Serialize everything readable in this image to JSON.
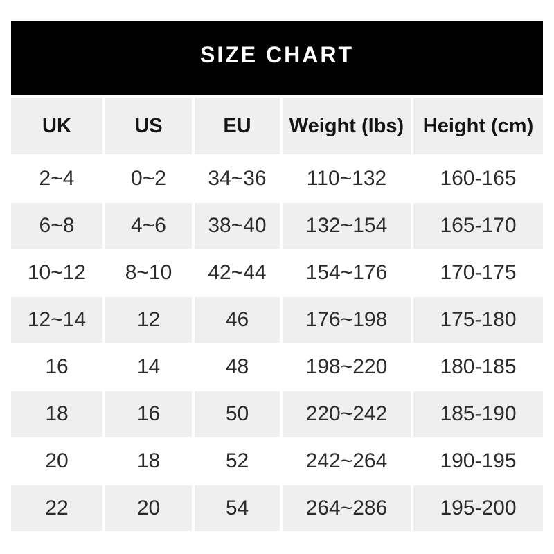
{
  "title": "SIZE CHART",
  "colors": {
    "band_background": "#000000",
    "band_text": "#ffffff",
    "stripe_row": "#efefef",
    "data_text": "#2b2b2b"
  },
  "table": {
    "columns": [
      "UK",
      "US",
      "EU",
      "Weight (lbs)",
      "Height (cm)"
    ],
    "rows": [
      [
        "2~4",
        "0~2",
        "34~36",
        "110~132",
        "160-165"
      ],
      [
        "6~8",
        "4~6",
        "38~40",
        "132~154",
        "165-170"
      ],
      [
        "10~12",
        "8~10",
        "42~44",
        "154~176",
        "170-175"
      ],
      [
        "12~14",
        "12",
        "46",
        "176~198",
        "175-180"
      ],
      [
        "16",
        "14",
        "48",
        "198~220",
        "180-185"
      ],
      [
        "18",
        "16",
        "50",
        "220~242",
        "185-190"
      ],
      [
        "20",
        "18",
        "52",
        "242~264",
        "190-195"
      ],
      [
        "22",
        "20",
        "54",
        "264~286",
        "195-200"
      ]
    ]
  },
  "chart_data": {
    "type": "table",
    "title": "SIZE CHART",
    "columns": [
      "UK",
      "US",
      "EU",
      "Weight (lbs)",
      "Height (cm)"
    ],
    "rows": [
      [
        "2~4",
        "0~2",
        "34~36",
        "110~132",
        "160-165"
      ],
      [
        "6~8",
        "4~6",
        "38~40",
        "132~154",
        "165-170"
      ],
      [
        "10~12",
        "8~10",
        "42~44",
        "154~176",
        "170-175"
      ],
      [
        "12~14",
        "12",
        "46",
        "176~198",
        "175-180"
      ],
      [
        "16",
        "14",
        "48",
        "198~220",
        "180-185"
      ],
      [
        "18",
        "16",
        "50",
        "220~242",
        "185-190"
      ],
      [
        "20",
        "18",
        "52",
        "242~264",
        "190-195"
      ],
      [
        "22",
        "20",
        "54",
        "264~286",
        "195-200"
      ]
    ],
    "layout": {
      "striped": true,
      "stripe_start_row": 2,
      "grid": "white gaps between cells"
    }
  }
}
